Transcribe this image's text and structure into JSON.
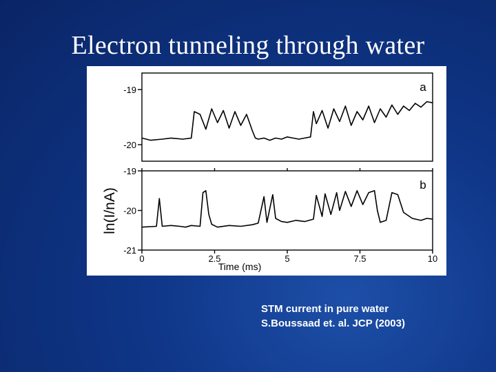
{
  "slide": {
    "title": "Electron tunneling through water",
    "caption_line1": "STM current in pure water",
    "caption_line2": "S.Boussaad et. al.  JCP (2003)"
  },
  "colors": {
    "background": "#0f3688",
    "text": "#ffffff",
    "trace": "#000000"
  },
  "chart_data": {
    "type": "line",
    "ylabel": "ln(I/nA)",
    "xlabel": "Time (ms)",
    "xlim": [
      0,
      10
    ],
    "x_ticks": [
      "0",
      "2.5",
      "5",
      "7.5",
      "10"
    ],
    "panels": [
      {
        "label": "a",
        "ylim": [
          -20.3,
          -18.7
        ],
        "y_ticks": [
          "-19",
          "-20"
        ],
        "y_tick_values": [
          -19,
          -20
        ],
        "series": [
          {
            "x": [
              0,
              0.3,
              0.7,
              1.0,
              1.4,
              1.7,
              1.8,
              2.0,
              2.2,
              2.4,
              2.6,
              2.8,
              3.0,
              3.2,
              3.4,
              3.6,
              3.8,
              3.9,
              4.0,
              4.2,
              4.4,
              4.6,
              4.8,
              5.0,
              5.2,
              5.4,
              5.6,
              5.8,
              5.9,
              6.0,
              6.2,
              6.4,
              6.6,
              6.8,
              7.0,
              7.2,
              7.4,
              7.6,
              7.8,
              8.0,
              8.2,
              8.4,
              8.6,
              8.8,
              9.0,
              9.2,
              9.4,
              9.6,
              9.8,
              10.0
            ],
            "y": [
              -19.88,
              -19.92,
              -19.9,
              -19.88,
              -19.9,
              -19.88,
              -19.4,
              -19.45,
              -19.72,
              -19.35,
              -19.6,
              -19.38,
              -19.7,
              -19.4,
              -19.65,
              -19.45,
              -19.75,
              -19.88,
              -19.9,
              -19.88,
              -19.92,
              -19.88,
              -19.9,
              -19.86,
              -19.88,
              -19.9,
              -19.88,
              -19.86,
              -19.4,
              -19.62,
              -19.38,
              -19.7,
              -19.35,
              -19.58,
              -19.3,
              -19.65,
              -19.4,
              -19.55,
              -19.3,
              -19.6,
              -19.35,
              -19.5,
              -19.28,
              -19.45,
              -19.3,
              -19.38,
              -19.25,
              -19.32,
              -19.22,
              -19.24
            ]
          }
        ]
      },
      {
        "label": "b",
        "ylim": [
          -21.0,
          -19.0
        ],
        "y_ticks": [
          "-19",
          "-20",
          "-21"
        ],
        "y_tick_values": [
          -19,
          -20,
          -21
        ],
        "series": [
          {
            "x": [
              0,
              0.5,
              0.6,
              0.7,
              1.0,
              1.3,
              1.5,
              1.7,
              2.0,
              2.1,
              2.2,
              2.3,
              2.4,
              2.6,
              3.0,
              3.4,
              3.8,
              4.0,
              4.2,
              4.3,
              4.5,
              4.6,
              4.8,
              5.0,
              5.3,
              5.6,
              5.9,
              6.0,
              6.2,
              6.3,
              6.5,
              6.7,
              6.8,
              7.0,
              7.2,
              7.4,
              7.6,
              7.8,
              8.0,
              8.1,
              8.2,
              8.4,
              8.6,
              8.8,
              9.0,
              9.3,
              9.6,
              9.8,
              10.0
            ],
            "y": [
              -20.42,
              -20.4,
              -19.7,
              -20.4,
              -20.38,
              -20.4,
              -20.42,
              -20.38,
              -20.4,
              -19.55,
              -19.5,
              -20.1,
              -20.35,
              -20.42,
              -20.38,
              -20.4,
              -20.36,
              -20.32,
              -19.65,
              -20.3,
              -19.6,
              -20.2,
              -20.28,
              -20.3,
              -20.25,
              -20.28,
              -20.22,
              -19.62,
              -20.15,
              -19.58,
              -20.1,
              -19.55,
              -20.0,
              -19.52,
              -19.9,
              -19.5,
              -19.85,
              -19.55,
              -19.5,
              -20.0,
              -20.3,
              -20.25,
              -19.55,
              -19.6,
              -20.05,
              -20.2,
              -20.25,
              -20.2,
              -20.22
            ]
          }
        ]
      }
    ]
  }
}
